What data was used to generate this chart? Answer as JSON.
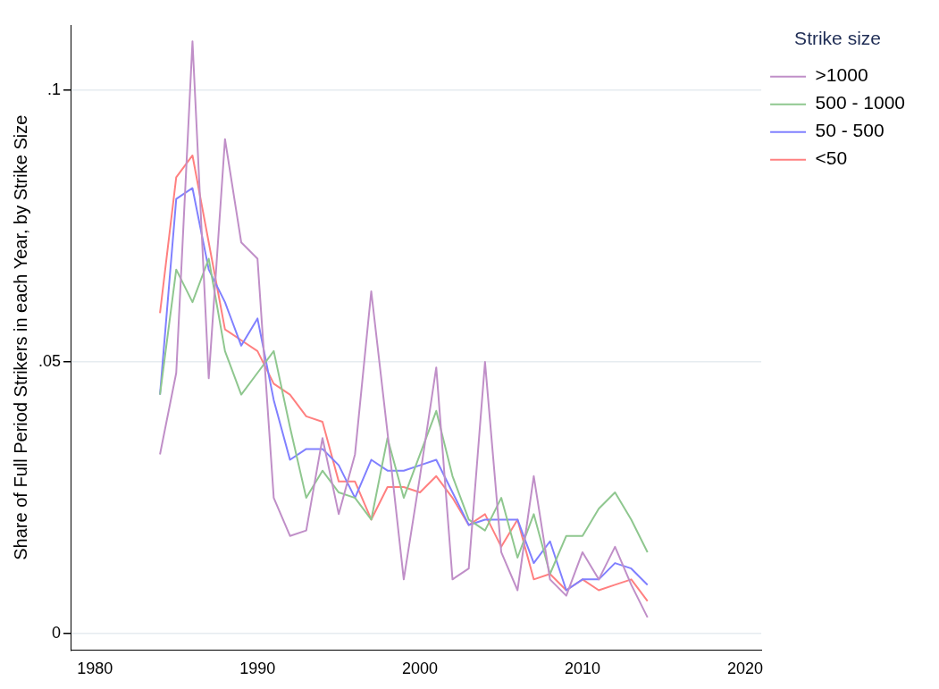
{
  "chart_data": {
    "type": "line",
    "ylabel": "Share of Full Period Strikers in each Year, by Strike Size",
    "legend_title": "Strike size",
    "legend": "right",
    "x": [
      1984,
      1985,
      1986,
      1987,
      1988,
      1989,
      1990,
      1991,
      1992,
      1993,
      1994,
      1995,
      1996,
      1997,
      1998,
      1999,
      2000,
      2001,
      2002,
      2003,
      2004,
      2005,
      2006,
      2007,
      2008,
      2009,
      2010,
      2011,
      2012,
      2013,
      2014
    ],
    "series": [
      {
        "name": ">1000",
        "color": "#c08fc8",
        "values": [
          0.033,
          0.048,
          0.109,
          0.047,
          0.091,
          0.072,
          0.069,
          0.025,
          0.018,
          0.019,
          0.036,
          0.022,
          0.033,
          0.063,
          0.037,
          0.01,
          0.029,
          0.049,
          0.01,
          0.012,
          0.05,
          0.015,
          0.008,
          0.029,
          0.01,
          0.007,
          0.015,
          0.01,
          0.016,
          0.009,
          0.003
        ]
      },
      {
        "name": "500 - 1000",
        "color": "#8fc78f",
        "values": [
          0.044,
          0.067,
          0.061,
          0.069,
          0.052,
          0.044,
          0.048,
          0.052,
          0.038,
          0.025,
          0.03,
          0.026,
          0.025,
          0.021,
          0.036,
          0.025,
          0.033,
          0.041,
          0.029,
          0.021,
          0.019,
          0.025,
          0.014,
          0.022,
          0.011,
          0.018,
          0.018,
          0.023,
          0.026,
          0.021,
          0.015
        ]
      },
      {
        "name": "50 - 500",
        "color": "#8080ff",
        "values": [
          0.044,
          0.08,
          0.082,
          0.067,
          0.061,
          0.053,
          0.058,
          0.043,
          0.032,
          0.034,
          0.034,
          0.031,
          0.025,
          0.032,
          0.03,
          0.03,
          0.031,
          0.032,
          0.026,
          0.02,
          0.021,
          0.021,
          0.021,
          0.013,
          0.017,
          0.008,
          0.01,
          0.01,
          0.013,
          0.012,
          0.009
        ]
      },
      {
        "name": "<50",
        "color": "#ff8080",
        "values": [
          0.059,
          0.084,
          0.088,
          0.072,
          0.056,
          0.054,
          0.052,
          0.046,
          0.044,
          0.04,
          0.039,
          0.028,
          0.028,
          0.021,
          0.027,
          0.027,
          0.026,
          0.029,
          0.025,
          0.02,
          0.022,
          0.016,
          0.021,
          0.01,
          0.011,
          0.008,
          0.01,
          0.008,
          0.009,
          0.01,
          0.006
        ]
      }
    ],
    "xlim": [
      1978.5,
      2021
    ],
    "xticks": [
      1980,
      1990,
      2000,
      2010,
      2020
    ],
    "ylim": [
      -0.003,
      0.112
    ],
    "yticks": [
      {
        "value": 0,
        "label": "0"
      },
      {
        "value": 0.05,
        "label": ".05"
      },
      {
        "value": 0.1,
        "label": ".1"
      }
    ],
    "grid": "y"
  }
}
